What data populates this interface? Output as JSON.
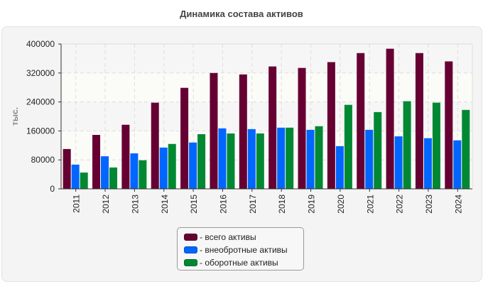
{
  "chart_data": {
    "type": "bar",
    "title": "Динамика состава активов",
    "xlabel": "",
    "ylabel": "тыс.",
    "ylim": [
      0,
      400000
    ],
    "yticks": [
      "0",
      "80000",
      "160000",
      "240000",
      "320000",
      "400000"
    ],
    "grid": true,
    "legend_position": "bottom-center",
    "categories": [
      "2011",
      "2012",
      "2013",
      "2014",
      "2015",
      "2016",
      "2017",
      "2018",
      "2019",
      "2020",
      "2021",
      "2022",
      "2023",
      "2024"
    ],
    "series": [
      {
        "name": "- всего активы",
        "color": "#660033",
        "values": [
          110000,
          149000,
          177000,
          238000,
          279000,
          320000,
          316000,
          338000,
          334000,
          350000,
          375000,
          387000,
          375000,
          352000
        ]
      },
      {
        "name": "- внеобротные активы",
        "color": "#0066ff",
        "values": [
          67000,
          90000,
          98000,
          114000,
          128000,
          167000,
          165000,
          169000,
          163000,
          118000,
          163000,
          145000,
          140000,
          134000
        ]
      },
      {
        "name": "- оборотные активы",
        "color": "#008833",
        "values": [
          45000,
          59000,
          79000,
          124000,
          151000,
          153000,
          153000,
          169000,
          173000,
          232000,
          212000,
          242000,
          238000,
          218000
        ]
      }
    ]
  }
}
